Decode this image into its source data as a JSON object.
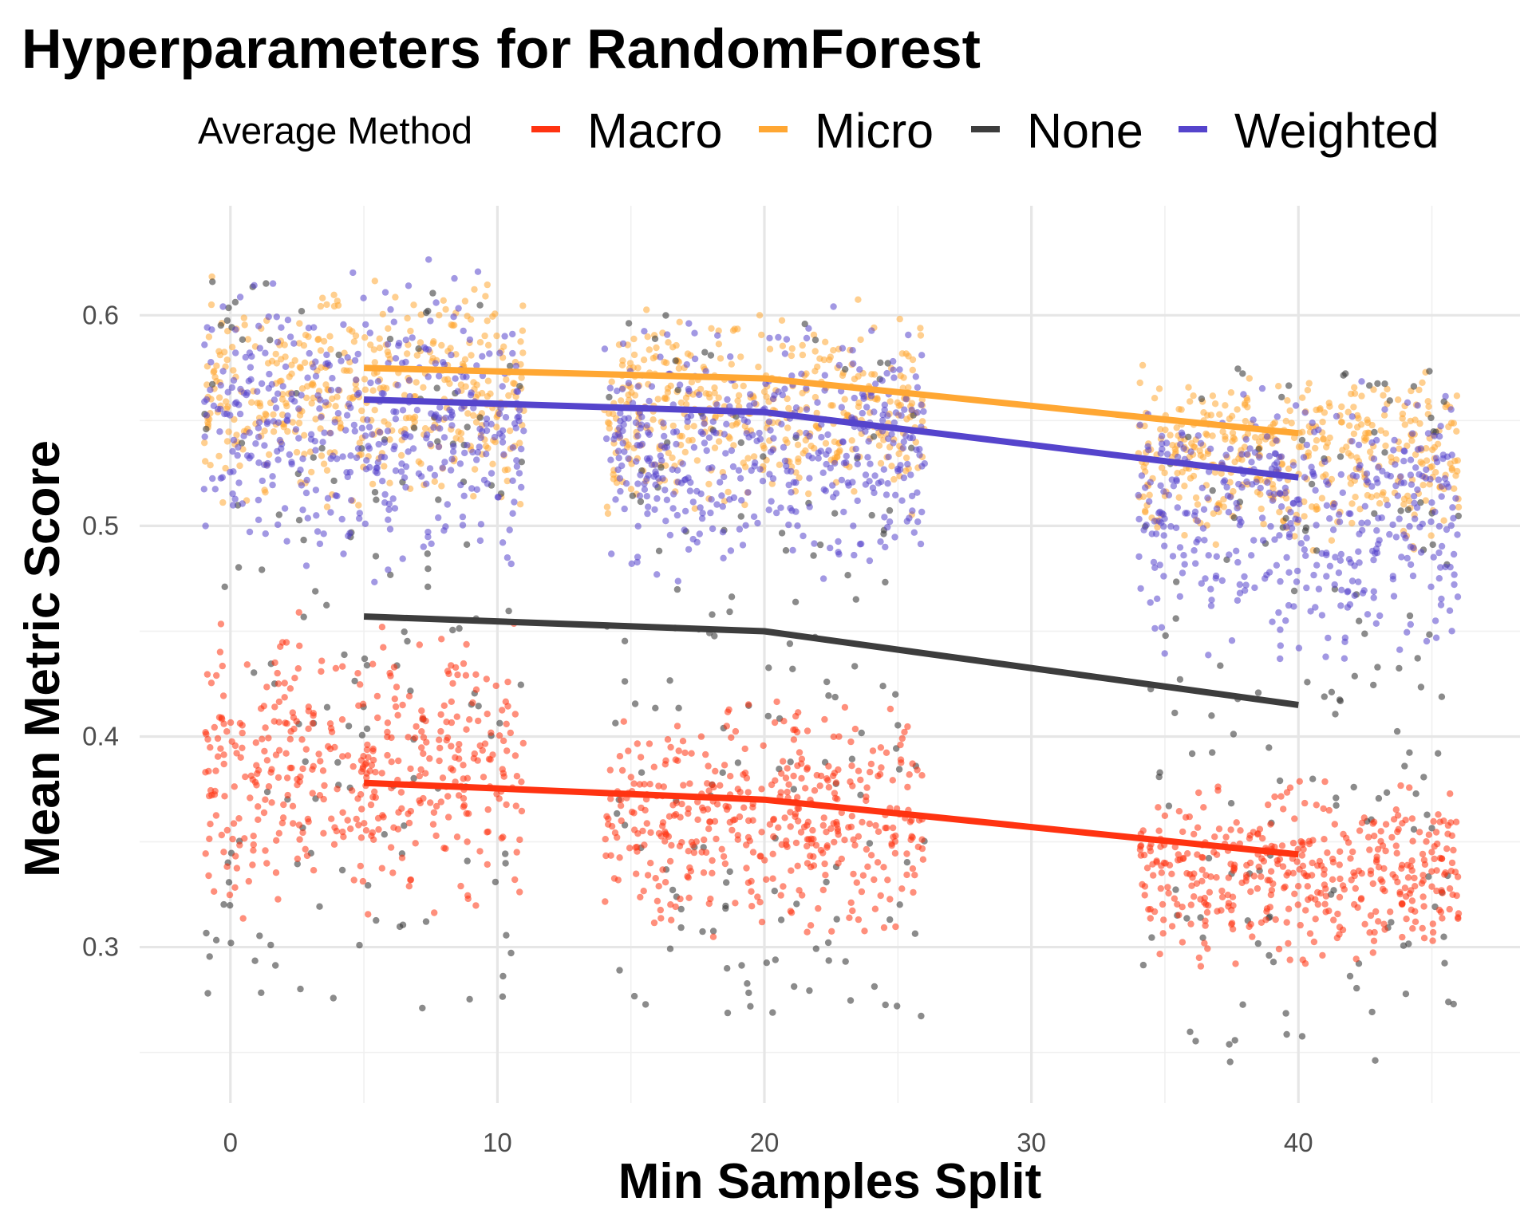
{
  "chart_data": {
    "type": "scatter",
    "title": "Hyperparameters for RandomForest",
    "xlabel": "Min Samples Split",
    "ylabel": "Mean Metric Score",
    "xlim": [
      -3.4,
      48.3
    ],
    "ylim": [
      0.226,
      0.652
    ],
    "x_ticks": [
      0,
      10,
      20,
      30,
      40
    ],
    "x_tick_labels": [
      "0",
      "10",
      "20",
      "30",
      "40"
    ],
    "x_minor_ticks": [
      5,
      15,
      25,
      35,
      45
    ],
    "y_ticks": [
      0.3,
      0.4,
      0.5,
      0.6
    ],
    "y_tick_labels": [
      "0.3",
      "0.4",
      "0.5",
      "0.6"
    ],
    "y_minor_ticks": [
      0.25,
      0.35,
      0.45,
      0.55
    ],
    "grid": true,
    "legend": {
      "title": "Average Method",
      "position": "top"
    },
    "series": [
      {
        "name": "Macro",
        "color": "#FF3311",
        "point_opacity": 0.55,
        "clusters": [
          {
            "x_range": [
              -1,
              11
            ],
            "y_range": [
              0.31,
              0.46
            ],
            "density": "dense"
          },
          {
            "x_range": [
              14,
              26
            ],
            "y_range": [
              0.3,
              0.42
            ],
            "density": "dense"
          },
          {
            "x_range": [
              34,
              46
            ],
            "y_range": [
              0.29,
              0.38
            ],
            "density": "dense"
          }
        ],
        "trend": {
          "x": [
            5,
            20,
            40
          ],
          "y": [
            0.378,
            0.37,
            0.344
          ]
        }
      },
      {
        "name": "Micro",
        "color": "#FFA733",
        "point_opacity": 0.55,
        "clusters": [
          {
            "x_range": [
              -1,
              11
            ],
            "y_range": [
              0.505,
              0.622
            ],
            "density": "dense"
          },
          {
            "x_range": [
              14,
              26
            ],
            "y_range": [
              0.505,
              0.608
            ],
            "density": "dense"
          },
          {
            "x_range": [
              34,
              46
            ],
            "y_range": [
              0.487,
              0.578
            ],
            "density": "dense"
          }
        ],
        "trend": {
          "x": [
            5,
            20,
            40
          ],
          "y": [
            0.575,
            0.57,
            0.544
          ]
        }
      },
      {
        "name": "None",
        "color": "#3D3D3D",
        "point_opacity": 0.6,
        "clusters": [
          {
            "x_range": [
              -1,
              11
            ],
            "y_range": [
              0.27,
              0.62
            ],
            "density": "sparse"
          },
          {
            "x_range": [
              14,
              26
            ],
            "y_range": [
              0.265,
              0.6
            ],
            "density": "sparse"
          },
          {
            "x_range": [
              34,
              46
            ],
            "y_range": [
              0.245,
              0.575
            ],
            "density": "sparse"
          }
        ],
        "trend": {
          "x": [
            5,
            20,
            40
          ],
          "y": [
            0.457,
            0.45,
            0.415
          ]
        }
      },
      {
        "name": "Weighted",
        "color": "#5544CC",
        "point_opacity": 0.55,
        "clusters": [
          {
            "x_range": [
              -1,
              11
            ],
            "y_range": [
              0.47,
              0.628
            ],
            "density": "dense"
          },
          {
            "x_range": [
              14,
              26
            ],
            "y_range": [
              0.47,
              0.605
            ],
            "density": "dense"
          },
          {
            "x_range": [
              34,
              46
            ],
            "y_range": [
              0.435,
              0.575
            ],
            "density": "dense"
          }
        ],
        "trend": {
          "x": [
            5,
            20,
            40
          ],
          "y": [
            0.56,
            0.554,
            0.523
          ]
        }
      }
    ]
  }
}
